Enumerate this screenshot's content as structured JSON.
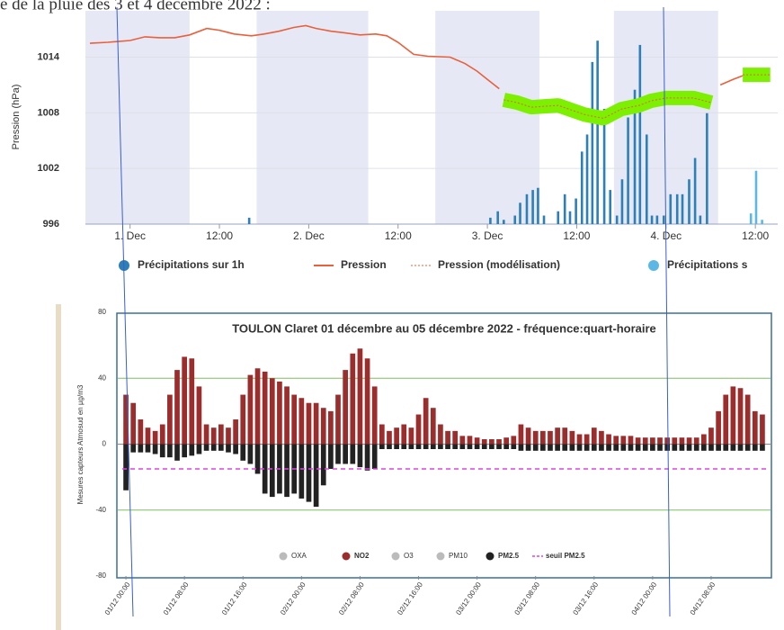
{
  "chart_data": [
    {
      "type": "line",
      "caption": "e de la pluie des 3 et 4 décembre 2022 :",
      "ylabel": "Pression (hPa)",
      "xlim": [
        -6,
        87
      ],
      "xticks": [
        {
          "value": 0,
          "label": "1. Dec"
        },
        {
          "value": 12,
          "label": "12:00"
        },
        {
          "value": 24,
          "label": "2. Dec"
        },
        {
          "value": 36,
          "label": "12:00"
        },
        {
          "value": 48,
          "label": "3. Dec"
        },
        {
          "value": 60,
          "label": "12:00"
        },
        {
          "value": 72,
          "label": "4. Dec"
        },
        {
          "value": 84,
          "label": "12:00"
        }
      ],
      "ylim": [
        996,
        1019
      ],
      "yticks": [
        996,
        1002,
        1008,
        1014
      ],
      "grid": true,
      "bands": [
        [
          -6,
          8
        ],
        [
          17,
          32
        ],
        [
          41,
          55
        ],
        [
          65,
          79
        ]
      ],
      "y2lim": [
        0,
        10
      ],
      "series": [
        {
          "name": "Précipitations sur 1h",
          "color": "#2d7fb8",
          "type": "bar",
          "axis": "y2",
          "x": [
            16.0,
            48.4,
            49.4,
            50.2,
            51.7,
            52.4,
            53.3,
            54.1,
            54.8,
            55.6,
            57.5,
            58.4,
            59.1,
            59.9,
            60.7,
            61.4,
            62.1,
            62.8,
            63.7,
            64.5,
            65.4,
            66.1,
            66.9,
            67.8,
            68.5,
            69.4,
            70.1,
            70.8,
            71.7,
            72.6,
            73.5,
            74.2,
            75.1,
            75.9,
            76.6,
            77.5
          ],
          "values": [
            0.3,
            0.3,
            0.6,
            0.2,
            0.4,
            1.0,
            1.4,
            1.6,
            1.7,
            0.4,
            0.6,
            1.4,
            0.6,
            1.2,
            3.4,
            4.2,
            7.6,
            8.6,
            5.4,
            1.6,
            0.4,
            2.1,
            5.0,
            6.3,
            8.4,
            4.2,
            0.4,
            0.4,
            0.4,
            1.4,
            1.4,
            1.4,
            2.1,
            3.1,
            0.4,
            5.2
          ]
        },
        {
          "name": "Pression",
          "color": "#e8603c",
          "type": "line",
          "x": [
            -5.4,
            -3,
            0,
            2,
            4,
            6,
            8,
            10.3,
            12,
            14,
            16.3,
            18,
            20,
            22,
            23.6,
            25,
            27,
            29,
            30.9,
            33,
            34.5,
            36,
            38.1,
            40,
            43,
            45,
            46.6,
            48,
            49.6,
            null,
            79.3,
            81,
            82.3
          ],
          "values": [
            1015.5,
            1015.6,
            1015.8,
            1016.2,
            1016.1,
            1016.1,
            1016.4,
            1017.1,
            1016.9,
            1016.5,
            1016.3,
            1016.5,
            1016.8,
            1017.2,
            1017.4,
            1017.1,
            1016.8,
            1016.6,
            1016.4,
            1016.5,
            1016.3,
            1015.6,
            1014.3,
            1014.1,
            1014,
            1013.3,
            1012.5,
            1011.6,
            1010.6,
            null,
            1011,
            1011.6,
            1012
          ]
        },
        {
          "name": "Pression (modélisation)",
          "color": "#e8603c",
          "type": "line",
          "dash": true,
          "highlight": "#7cf000",
          "x": [
            50.2,
            52,
            53.9,
            55.7,
            57.5,
            59.3,
            61.1,
            63.6,
            66,
            68.4,
            70,
            72,
            75.7,
            78.1,
            null,
            82.3,
            86
          ],
          "values": [
            1009.4,
            1009.1,
            1008.6,
            1008.7,
            1008.8,
            1008.3,
            1007.8,
            1007.4,
            1008.4,
            1008.8,
            1009.3,
            1009.6,
            1009.6,
            1009.1,
            null,
            1012.1,
            1012.1
          ]
        },
        {
          "name": "Précipitations s",
          "color": "#5bb8e6",
          "type": "bar",
          "axis": "y2",
          "x": [
            83.4,
            84.1,
            84.9
          ],
          "values": [
            0.5,
            2.5,
            0.2
          ]
        }
      ]
    },
    {
      "type": "bar",
      "title": "TOULON Claret 01 décembre au 05 décembre 2022 - fréquence:quart-horaire",
      "ylabel": "Mesures capteurs Atmosud en µg/m3",
      "xlim": [
        -0.5,
        87.5
      ],
      "xticks": [
        {
          "value": 0,
          "label": "01/12 00:00"
        },
        {
          "value": 8,
          "label": "01/12 08:00"
        },
        {
          "value": 16,
          "label": "01/12 16:00"
        },
        {
          "value": 24,
          "label": "02/12 00:00"
        },
        {
          "value": 32,
          "label": "02/12 08:00"
        },
        {
          "value": 40,
          "label": "02/12 16:00"
        },
        {
          "value": 48,
          "label": "03/12 00:00"
        },
        {
          "value": 56,
          "label": "03/12 08:00"
        },
        {
          "value": 64,
          "label": "03/12 16:00"
        },
        {
          "value": 72,
          "label": "04/12 00:00"
        },
        {
          "value": 80,
          "label": "04/12 08:00"
        }
      ],
      "ylim": [
        -80,
        80
      ],
      "yticks": [
        -80,
        -40,
        0,
        40,
        80
      ],
      "grid_color": "#7fbf5f",
      "x": [
        0,
        1,
        2,
        3,
        4,
        5,
        6,
        7,
        8,
        9,
        10,
        11,
        12,
        13,
        14,
        15,
        16,
        17,
        18,
        19,
        20,
        21,
        22,
        23,
        24,
        25,
        26,
        27,
        28,
        29,
        30,
        31,
        32,
        33,
        34,
        35,
        36,
        37,
        38,
        39,
        40,
        41,
        42,
        43,
        44,
        45,
        46,
        47,
        48,
        49,
        50,
        51,
        52,
        53,
        54,
        55,
        56,
        57,
        58,
        59,
        60,
        61,
        62,
        63,
        64,
        65,
        66,
        67,
        68,
        69,
        70,
        71,
        72,
        73,
        74,
        75,
        76,
        77,
        78,
        79,
        80,
        81,
        82,
        83,
        84,
        85,
        86,
        87
      ],
      "series": [
        {
          "name": "OXA",
          "color": "#bbbbbb",
          "hidden": true
        },
        {
          "name": "NO2",
          "color": "#9b2d2d",
          "values": [
            30,
            25,
            15,
            10,
            8,
            12,
            30,
            45,
            53,
            52,
            35,
            12,
            10,
            12,
            10,
            15,
            30,
            42,
            46,
            44,
            40,
            38,
            35,
            30,
            28,
            25,
            25,
            22,
            20,
            30,
            45,
            55,
            58,
            52,
            35,
            12,
            8,
            10,
            12,
            10,
            18,
            28,
            22,
            12,
            8,
            8,
            5,
            5,
            4,
            3,
            3,
            3,
            4,
            5,
            12,
            10,
            8,
            8,
            8,
            10,
            10,
            8,
            6,
            6,
            10,
            8,
            6,
            5,
            5,
            5,
            4,
            4,
            4,
            4,
            4,
            4,
            4,
            4,
            4,
            6,
            10,
            20,
            30,
            35,
            34,
            30,
            20,
            18
          ]
        },
        {
          "name": "O3",
          "color": "#bbbbbb",
          "hidden": true
        },
        {
          "name": "PM10",
          "color": "#bbbbbb",
          "hidden": true
        },
        {
          "name": "PM2.5",
          "color": "#222222",
          "values": [
            -28,
            -5,
            -5,
            -5,
            -6,
            -8,
            -8,
            -10,
            -8,
            -7,
            -6,
            -4,
            -4,
            -4,
            -5,
            -6,
            -10,
            -12,
            -18,
            -30,
            -32,
            -30,
            -32,
            -30,
            -33,
            -35,
            -38,
            -25,
            -15,
            -12,
            -12,
            -12,
            -14,
            -16,
            -15,
            -3,
            -3,
            -3,
            -3,
            -3,
            -3,
            -3,
            -3,
            -3,
            -3,
            -3,
            -3,
            -3,
            -3,
            -3,
            -3,
            -3,
            -3,
            -3,
            -4,
            -4,
            -4,
            -4,
            -4,
            -4,
            -4,
            -4,
            -4,
            -4,
            -4,
            -4,
            -4,
            -4,
            -4,
            -4,
            -4,
            -4,
            -4,
            -4,
            -4,
            -4,
            -4,
            -4,
            -4,
            -4,
            -4,
            -4,
            -4,
            -4,
            -4,
            -4,
            -4,
            -4
          ]
        },
        {
          "name": "seuil PM2.5",
          "color": "#e040e0",
          "threshold": -15
        }
      ]
    }
  ]
}
